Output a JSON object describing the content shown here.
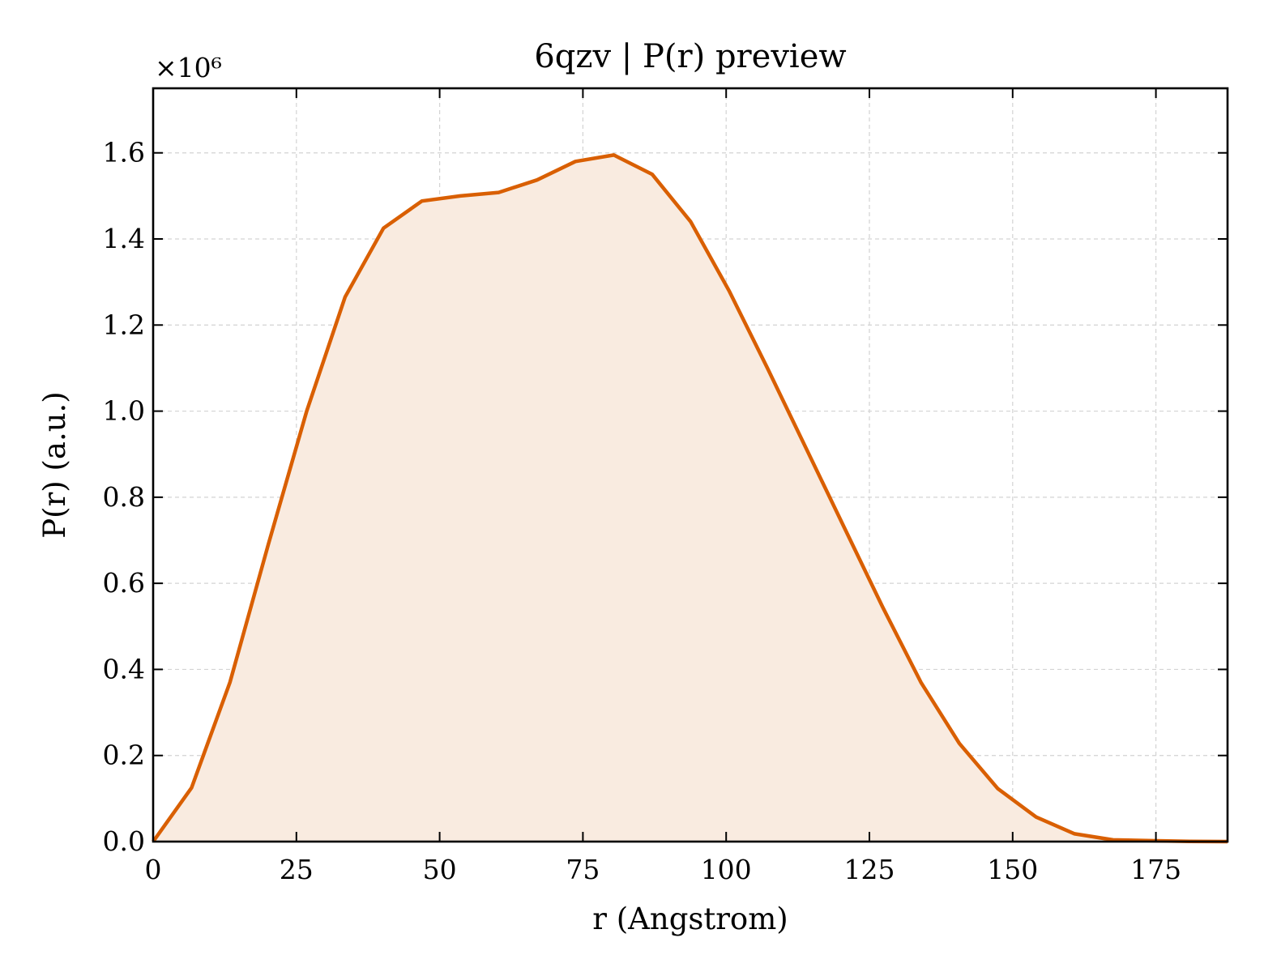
{
  "chart_data": {
    "type": "area",
    "title": "6qzv | P(r) preview",
    "xlabel": "r (Angstrom)",
    "ylabel": "P(r) (a.u.)",
    "y_scale_label": "×10⁶",
    "xlim": [
      0,
      187.5
    ],
    "ylim": [
      0,
      1.75
    ],
    "x_ticks": [
      0,
      25,
      50,
      75,
      100,
      125,
      150,
      175
    ],
    "x_tick_labels": [
      "0",
      "25",
      "50",
      "75",
      "100",
      "125",
      "150",
      "175"
    ],
    "y_ticks": [
      0,
      0.2,
      0.4,
      0.6,
      0.8,
      1.0,
      1.2,
      1.4,
      1.6
    ],
    "y_tick_labels": [
      "0.0",
      "0.2",
      "0.4",
      "0.6",
      "0.8",
      "1.0",
      "1.2",
      "1.4",
      "1.6"
    ],
    "grid": true,
    "line_color": "#d95f02",
    "fill_color": "#f9ebe0",
    "series": [
      {
        "x": [
          0,
          6.7,
          13.4,
          20.1,
          26.8,
          33.5,
          40.2,
          46.9,
          53.6,
          60.3,
          67.0,
          73.7,
          80.4,
          87.1,
          93.8,
          100.5,
          107.2,
          113.9,
          120.6,
          127.3,
          134.0,
          140.7,
          147.4,
          154.1,
          160.8,
          167.5,
          174.2,
          180.9,
          187.5
        ],
        "y": [
          0.0,
          0.125,
          0.37,
          0.69,
          1.0,
          1.265,
          1.425,
          1.488,
          1.5,
          1.508,
          1.537,
          1.58,
          1.595,
          1.55,
          1.44,
          1.28,
          1.1,
          0.915,
          0.73,
          0.545,
          0.37,
          0.228,
          0.123,
          0.057,
          0.018,
          0.004,
          0.002,
          0.0005,
          0.0
        ]
      }
    ]
  }
}
